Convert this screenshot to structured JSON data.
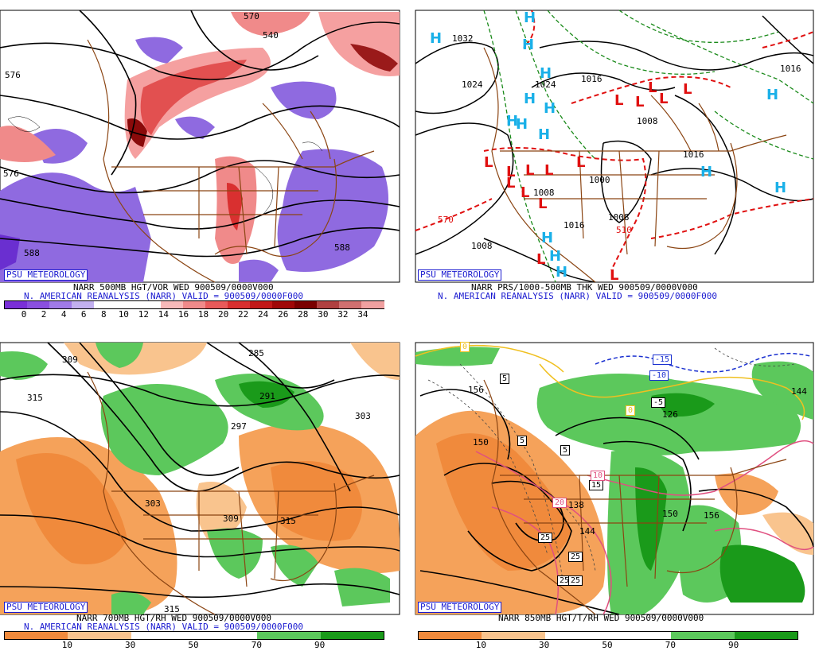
{
  "panels": [
    {
      "id": "tl",
      "badge": "PSU METEOROLOGY",
      "line1": "NARR 500MB HGT/VOR WED 900509/0000V000",
      "line2": "N. AMERICAN REANALYSIS (NARR) VALID = 900509/0000F000",
      "colorbar": {
        "ticks": [
          "0",
          "2",
          "4",
          "6",
          "8",
          "10",
          "12",
          "14",
          "16",
          "18",
          "20",
          "22",
          "24",
          "26",
          "28",
          "30",
          "32",
          "34"
        ],
        "colors": [
          "#7a2fd8",
          "#8a4fe0",
          "#a07ae8",
          "#c2b0ef",
          "#ffffff",
          "#ffffff",
          "#ffffff",
          "#f7b9b9",
          "#f08a8a",
          "#e85a5a",
          "#d93030",
          "#c21818",
          "#a00808",
          "#7a0000",
          "#b04040",
          "#d07070",
          "#f0a0a0"
        ]
      },
      "contour_labels": [
        "576",
        "576",
        "570",
        "540",
        "588",
        "588"
      ]
    },
    {
      "id": "tr",
      "badge": "PSU METEOROLOGY",
      "line1": "NARR PRS/1000-500MB THK WED 900509/0000V000",
      "line2": "N. AMERICAN REANALYSIS (NARR) VALID = 900509/0000F000",
      "contour_labels": [
        "1032",
        "1024",
        "1024",
        "1016",
        "1008",
        "1000",
        "1008",
        "1016",
        "1016",
        "1008",
        "1008",
        "1016",
        "570",
        "510",
        "1016",
        "1008"
      ]
    },
    {
      "id": "bl",
      "badge": "PSU METEOROLOGY",
      "line1": "NARR 700MB HGT/RH WED 900509/0000V000",
      "line2": "N. AMERICAN REANALYSIS (NARR) VALID = 900509/0000F000",
      "colorbar": {
        "ticks": [
          "10",
          "30",
          "50",
          "70",
          "90"
        ],
        "colors": [
          "#f08a3c",
          "#f9c48e",
          "#ffffff",
          "#ffffff",
          "#5cc85c",
          "#1a9a1a"
        ]
      },
      "contour_labels": [
        "309",
        "315",
        "285",
        "291",
        "297",
        "303",
        "303",
        "309",
        "315",
        "315"
      ]
    },
    {
      "id": "br",
      "badge": "PSU METEOROLOGY",
      "line1": "NARR 850MB HGT/T/RH WED 900509/0000V000",
      "colorbar": {
        "ticks": [
          "10",
          "30",
          "50",
          "70",
          "90"
        ],
        "colors": [
          "#f08a3c",
          "#f9c48e",
          "#ffffff",
          "#ffffff",
          "#5cc85c",
          "#1a9a1a"
        ]
      },
      "contour_labels": [
        "156",
        "150",
        "138",
        "144",
        "150",
        "156",
        "126",
        "144"
      ],
      "temp_boxes": [
        "0",
        "5",
        "5",
        "5",
        "0",
        "15",
        "10",
        "20",
        "25",
        "25",
        "25",
        "25",
        "-15",
        "-10",
        "-5"
      ]
    }
  ]
}
